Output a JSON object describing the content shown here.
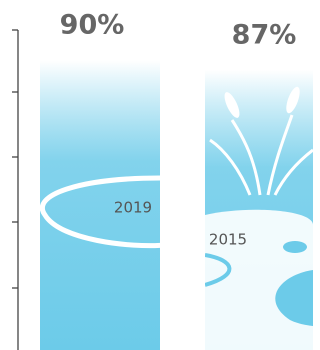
{
  "chart_data": {
    "type": "bar",
    "categories": [
      "2019",
      "2015"
    ],
    "values": [
      90,
      87
    ],
    "value_labels": [
      "90%",
      "87%"
    ],
    "color": "#6ccbe9",
    "ylim": [
      0,
      100
    ]
  }
}
